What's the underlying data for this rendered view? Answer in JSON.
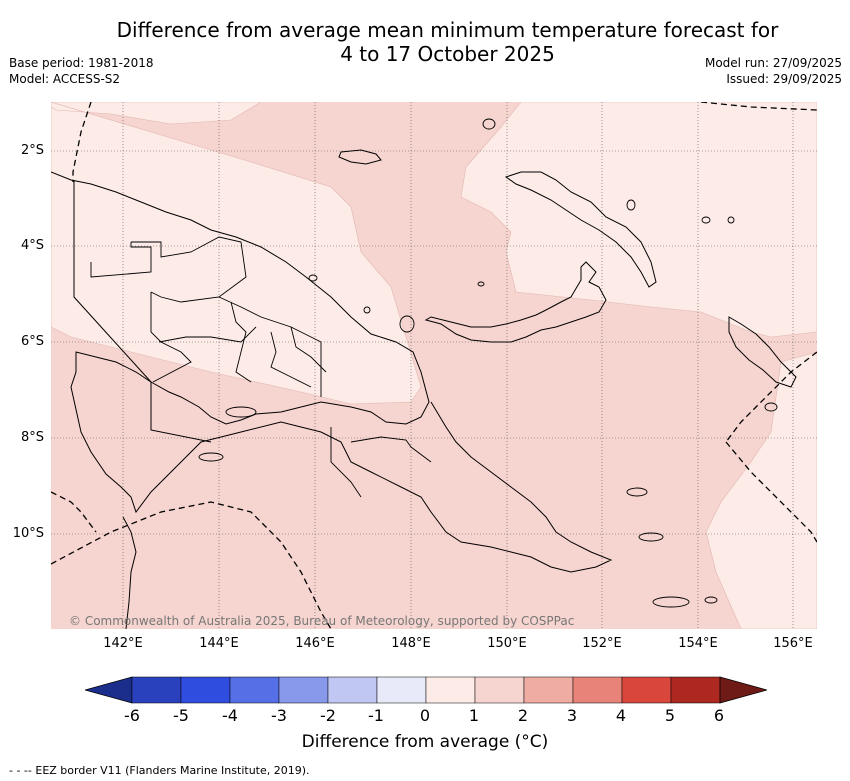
{
  "title_line1": "Difference from average mean minimum temperature forecast for",
  "title_line2": "4 to 17 October 2025",
  "meta": {
    "base_period": "Base period: 1981-2018",
    "model": "Model: ACCESS-S2",
    "model_run": "Model run: 27/09/2025",
    "issued": "Issued: 29/09/2025"
  },
  "map": {
    "lat_labels": [
      "2°S",
      "4°S",
      "6°S",
      "8°S",
      "10°S"
    ],
    "lon_labels": [
      "142°E",
      "144°E",
      "146°E",
      "148°E",
      "150°E",
      "152°E",
      "154°E",
      "156°E"
    ],
    "copyright": "© Commonwealth of Australia 2025, Bureau of Meteorology, supported by COSPPac",
    "colors": {
      "anomaly_0_1": "#fcebe7",
      "anomaly_1_2": "#f6d4cf",
      "land_outline": "#000000"
    }
  },
  "colorbar": {
    "ticks": [
      "-6",
      "-5",
      "-4",
      "-3",
      "-2",
      "-1",
      "0",
      "1",
      "2",
      "3",
      "4",
      "5",
      "6"
    ],
    "colors": [
      "#1c2e8c",
      "#2a41bd",
      "#2f4ddf",
      "#5570e6",
      "#8899ec",
      "#c1c7f3",
      "#e8eafa",
      "#fcebe7",
      "#f6d4cf",
      "#efaca3",
      "#e8837a",
      "#d9473c",
      "#ad2820",
      "#6e1a17"
    ],
    "title": "Difference from average (°C)"
  },
  "legend_note": "- - -- EEZ border V11 (Flanders Marine Institute, 2019)."
}
